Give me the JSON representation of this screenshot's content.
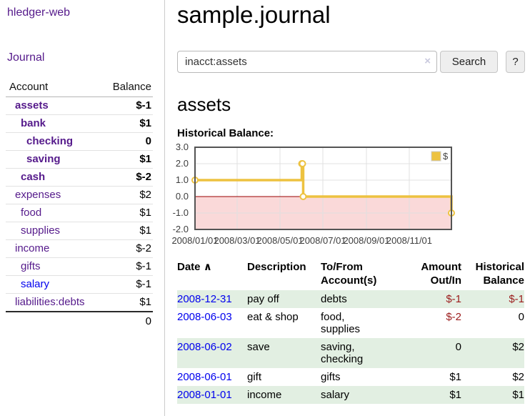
{
  "sidebar": {
    "brand": "hledger-web",
    "journal_link": "Journal",
    "accounts_table": {
      "headers": [
        "Account",
        "Balance"
      ],
      "rows": [
        {
          "account": "assets",
          "depth": 1,
          "bold": true,
          "balance": "$-1",
          "neg": "strong"
        },
        {
          "account": "bank",
          "depth": 2,
          "bold": true,
          "balance": "$1"
        },
        {
          "account": "checking",
          "depth": 3,
          "bold": true,
          "balance": "0"
        },
        {
          "account": "saving",
          "depth": 3,
          "bold": true,
          "balance": "$1"
        },
        {
          "account": "cash",
          "depth": 2,
          "bold": true,
          "balance": "$-2",
          "neg": "strong"
        },
        {
          "account": "expenses",
          "depth": 1,
          "bold": false,
          "balance": "$2"
        },
        {
          "account": "food",
          "depth": 2,
          "bold": false,
          "balance": "$1"
        },
        {
          "account": "supplies",
          "depth": 2,
          "bold": false,
          "balance": "$1"
        },
        {
          "account": "income",
          "depth": 1,
          "bold": false,
          "balance": "$-2",
          "neg": "soft"
        },
        {
          "account": "gifts",
          "depth": 2,
          "bold": false,
          "balance": "$-1",
          "neg": "soft"
        },
        {
          "account": "salary",
          "depth": 2,
          "bold": false,
          "blue": true,
          "balance": "$-1",
          "neg": "soft"
        },
        {
          "account": "liabilities:debts",
          "depth": 1,
          "bold": false,
          "balance": "$1"
        }
      ],
      "total": "0"
    }
  },
  "main": {
    "title": "sample.journal",
    "search": {
      "value": "inacct:assets",
      "clear_icon": "×",
      "button_label": "Search",
      "help_label": "?"
    },
    "account_heading": "assets",
    "chart_label": "Historical Balance:"
  },
  "chart_data": {
    "type": "line",
    "style": "step",
    "title": "Historical Balance:",
    "series": [
      {
        "name": "$",
        "points": [
          [
            "2008-01-01",
            1
          ],
          [
            "2008-06-01",
            2
          ],
          [
            "2008-06-02",
            2
          ],
          [
            "2008-06-03",
            0
          ],
          [
            "2008-12-31",
            -1
          ]
        ]
      }
    ],
    "x_range": [
      "2008-01-01",
      "2008-12-31"
    ],
    "y_range": [
      -2,
      3
    ],
    "x_ticks": [
      "2008/01/01",
      "2008/03/01",
      "2008/05/01",
      "2008/07/01",
      "2008/09/01",
      "2008/11/01"
    ],
    "y_ticks": [
      3.0,
      2.0,
      1.0,
      0.0,
      -1.0,
      -2.0
    ],
    "legend": {
      "label": "$",
      "position": "top-right"
    },
    "grid": true,
    "line_color": "#edc240",
    "marker_fill": "#ffffff",
    "zero_line_color": "#990000",
    "negative_zone_fill": "#fad9d9",
    "grid_color": "#e0e0e0",
    "border_color": "#545454",
    "tick_color": "#3d3d3d"
  },
  "register_table": {
    "sort_icon": "∧",
    "headers": [
      "Date",
      "Description",
      "To/From Account(s)",
      "Amount Out/In",
      "Historical Balance"
    ],
    "rows": [
      {
        "date": "2008-12-31",
        "description": "pay off",
        "accounts": "debts",
        "amount": "$-1",
        "amount_neg": true,
        "balance": "$-1",
        "balance_neg": true
      },
      {
        "date": "2008-06-03",
        "description": "eat & shop",
        "accounts": "food, supplies",
        "amount": "$-2",
        "amount_neg": true,
        "balance": "0",
        "balance_neg": false
      },
      {
        "date": "2008-06-02",
        "description": "save",
        "accounts": "saving, checking",
        "amount": "0",
        "amount_neg": false,
        "balance": "$2",
        "balance_neg": false
      },
      {
        "date": "2008-06-01",
        "description": "gift",
        "accounts": "gifts",
        "amount": "$1",
        "amount_neg": false,
        "balance": "$2",
        "balance_neg": false
      },
      {
        "date": "2008-01-01",
        "description": "income",
        "accounts": "salary",
        "amount": "$1",
        "amount_neg": false,
        "balance": "$1",
        "balance_neg": false
      }
    ]
  },
  "colors": {
    "link_purple": "#551A8B",
    "link_blue": "#0000EE",
    "negative_strong": "#9b1c1c",
    "negative_soft": "#b3696d",
    "row_green": "#e2efe2",
    "chart_gold": "#edc240"
  }
}
